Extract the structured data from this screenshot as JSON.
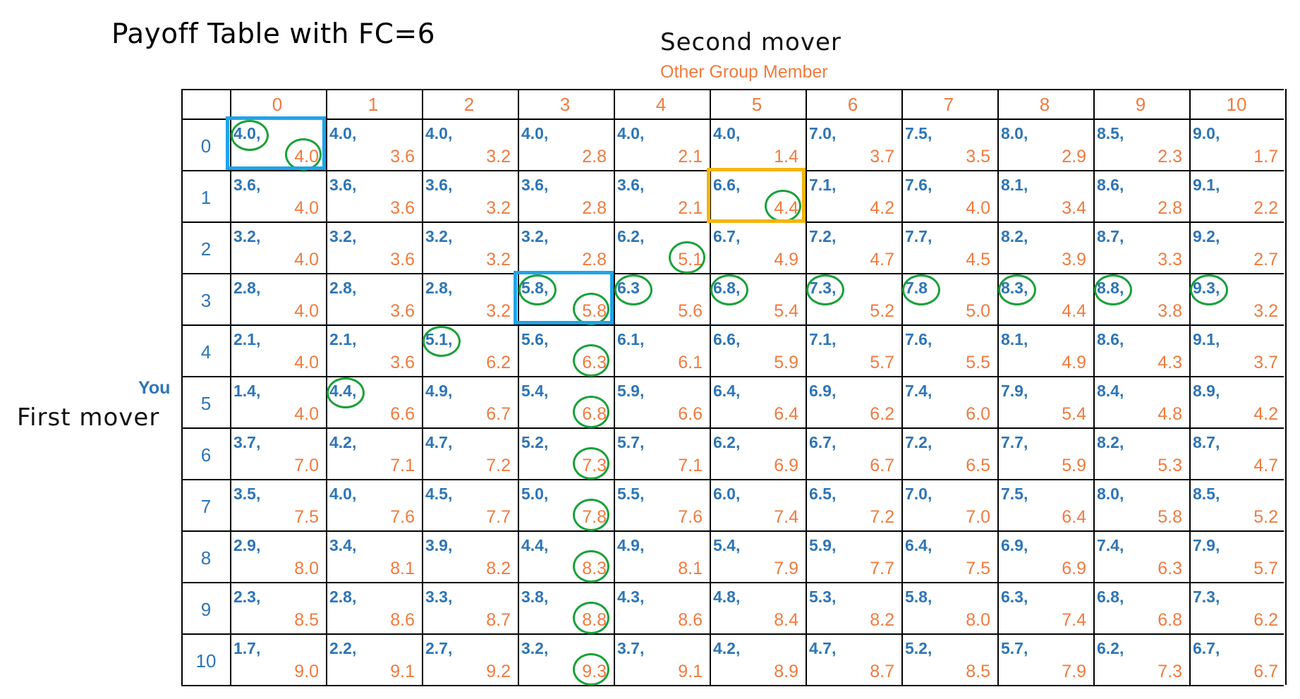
{
  "title": "Payoff Table with FC=6",
  "second_mover_label": "Second mover",
  "first_mover_label": "First mover",
  "column_axis_label": "Other Group Member",
  "row_axis_label": "You",
  "columns": [
    "0",
    "1",
    "2",
    "3",
    "4",
    "5",
    "6",
    "7",
    "8",
    "9",
    "10"
  ],
  "rows": [
    "0",
    "1",
    "2",
    "3",
    "4",
    "5",
    "6",
    "7",
    "8",
    "9",
    "10"
  ],
  "cells": [
    [
      [
        "4.0,",
        "4.0"
      ],
      [
        "4.0,",
        "3.6"
      ],
      [
        "4.0,",
        "3.2"
      ],
      [
        "4.0,",
        "2.8"
      ],
      [
        "4.0,",
        "2.1"
      ],
      [
        "4.0,",
        "1.4"
      ],
      [
        "7.0,",
        "3.7"
      ],
      [
        "7.5,",
        "3.5"
      ],
      [
        "8.0,",
        "2.9"
      ],
      [
        "8.5,",
        "2.3"
      ],
      [
        "9.0,",
        "1.7"
      ]
    ],
    [
      [
        "3.6,",
        "4.0"
      ],
      [
        "3.6,",
        "3.6"
      ],
      [
        "3.6,",
        "3.2"
      ],
      [
        "3.6,",
        "2.8"
      ],
      [
        "3.6,",
        "2.1"
      ],
      [
        "6.6,",
        "4.4"
      ],
      [
        "7.1,",
        "4.2"
      ],
      [
        "7.6,",
        "4.0"
      ],
      [
        "8.1,",
        "3.4"
      ],
      [
        "8.6,",
        "2.8"
      ],
      [
        "9.1,",
        "2.2"
      ]
    ],
    [
      [
        "3.2,",
        "4.0"
      ],
      [
        "3.2,",
        "3.6"
      ],
      [
        "3.2,",
        "3.2"
      ],
      [
        "3.2,",
        "2.8"
      ],
      [
        "6.2,",
        "5.1"
      ],
      [
        "6.7,",
        "4.9"
      ],
      [
        "7.2,",
        "4.7"
      ],
      [
        "7.7,",
        "4.5"
      ],
      [
        "8.2,",
        "3.9"
      ],
      [
        "8.7,",
        "3.3"
      ],
      [
        "9.2,",
        "2.7"
      ]
    ],
    [
      [
        "2.8,",
        "4.0"
      ],
      [
        "2.8,",
        "3.6"
      ],
      [
        "2.8,",
        "3.2"
      ],
      [
        "5.8,",
        "5.8"
      ],
      [
        "6.3",
        "5.6"
      ],
      [
        "6.8,",
        "5.4"
      ],
      [
        "7.3,",
        "5.2"
      ],
      [
        "7.8",
        "5.0"
      ],
      [
        "8.3,",
        "4.4"
      ],
      [
        "8.8,",
        "3.8"
      ],
      [
        "9.3,",
        "3.2"
      ]
    ],
    [
      [
        "2.1,",
        "4.0"
      ],
      [
        "2.1,",
        "3.6"
      ],
      [
        "5.1,",
        "6.2"
      ],
      [
        "5.6,",
        "6.3"
      ],
      [
        "6.1,",
        "6.1"
      ],
      [
        "6.6,",
        "5.9"
      ],
      [
        "7.1,",
        "5.7"
      ],
      [
        "7.6,",
        "5.5"
      ],
      [
        "8.1,",
        "4.9"
      ],
      [
        "8.6,",
        "4.3"
      ],
      [
        "9.1,",
        "3.7"
      ]
    ],
    [
      [
        "1.4,",
        "4.0"
      ],
      [
        "4.4,",
        "6.6"
      ],
      [
        "4.9,",
        "6.7"
      ],
      [
        "5.4,",
        "6.8"
      ],
      [
        "5.9,",
        "6.6"
      ],
      [
        "6.4,",
        "6.4"
      ],
      [
        "6.9,",
        "6.2"
      ],
      [
        "7.4,",
        "6.0"
      ],
      [
        "7.9,",
        "5.4"
      ],
      [
        "8.4,",
        "4.8"
      ],
      [
        "8.9,",
        "4.2"
      ]
    ],
    [
      [
        "3.7,",
        "7.0"
      ],
      [
        "4.2,",
        "7.1"
      ],
      [
        "4.7,",
        "7.2"
      ],
      [
        "5.2,",
        "7.3"
      ],
      [
        "5.7,",
        "7.1"
      ],
      [
        "6.2,",
        "6.9"
      ],
      [
        "6.7,",
        "6.7"
      ],
      [
        "7.2,",
        "6.5"
      ],
      [
        "7.7,",
        "5.9"
      ],
      [
        "8.2,",
        "5.3"
      ],
      [
        "8.7,",
        "4.7"
      ]
    ],
    [
      [
        "3.5,",
        "7.5"
      ],
      [
        "4.0,",
        "7.6"
      ],
      [
        "4.5,",
        "7.7"
      ],
      [
        "5.0,",
        "7.8"
      ],
      [
        "5.5,",
        "7.6"
      ],
      [
        "6.0,",
        "7.4"
      ],
      [
        "6.5,",
        "7.2"
      ],
      [
        "7.0,",
        "7.0"
      ],
      [
        "7.5,",
        "6.4"
      ],
      [
        "8.0,",
        "5.8"
      ],
      [
        "8.5,",
        "5.2"
      ]
    ],
    [
      [
        "2.9,",
        "8.0"
      ],
      [
        "3.4,",
        "8.1"
      ],
      [
        "3.9,",
        "8.2"
      ],
      [
        "4.4,",
        "8.3"
      ],
      [
        "4.9,",
        "8.1"
      ],
      [
        "5.4,",
        "7.9"
      ],
      [
        "5.9,",
        "7.7"
      ],
      [
        "6.4,",
        "7.5"
      ],
      [
        "6.9,",
        "6.9"
      ],
      [
        "7.4,",
        "6.3"
      ],
      [
        "7.9,",
        "5.7"
      ]
    ],
    [
      [
        "2.3,",
        "8.5"
      ],
      [
        "2.8,",
        "8.6"
      ],
      [
        "3.3,",
        "8.7"
      ],
      [
        "3.8,",
        "8.8"
      ],
      [
        "4.3,",
        "8.6"
      ],
      [
        "4.8,",
        "8.4"
      ],
      [
        "5.3,",
        "8.2"
      ],
      [
        "5.8,",
        "8.0"
      ],
      [
        "6.3,",
        "7.4"
      ],
      [
        "6.8,",
        "6.8"
      ],
      [
        "7.3,",
        "6.2"
      ]
    ],
    [
      [
        "1.7,",
        "9.0"
      ],
      [
        "2.2,",
        "9.1"
      ],
      [
        "2.7,",
        "9.2"
      ],
      [
        "3.2,",
        "9.3"
      ],
      [
        "3.7,",
        "9.1"
      ],
      [
        "4.2,",
        "8.9"
      ],
      [
        "4.7,",
        "8.7"
      ],
      [
        "5.2,",
        "8.5"
      ],
      [
        "5.7,",
        "7.9"
      ],
      [
        "6.2,",
        "7.3"
      ],
      [
        "6.7,",
        "6.7"
      ]
    ]
  ],
  "colors": {
    "first_mover_payoff": "#2e75b6",
    "second_mover_payoff": "#f07b3f",
    "highlight_circle": "#1aa13a",
    "equilibrium_box": "#1fa4e8",
    "alt_box": "#f5b50a"
  },
  "circled_first_mover": [
    [
      0,
      0
    ],
    [
      3,
      3
    ],
    [
      3,
      4
    ],
    [
      3,
      5
    ],
    [
      3,
      6
    ],
    [
      3,
      7
    ],
    [
      3,
      8
    ],
    [
      3,
      9
    ],
    [
      3,
      10
    ],
    [
      4,
      2
    ],
    [
      5,
      1
    ]
  ],
  "circled_second_mover": [
    [
      0,
      0
    ],
    [
      1,
      5
    ],
    [
      2,
      4
    ],
    [
      3,
      3
    ],
    [
      4,
      3
    ],
    [
      5,
      3
    ],
    [
      6,
      3
    ],
    [
      7,
      3
    ],
    [
      8,
      3
    ],
    [
      9,
      3
    ],
    [
      10,
      3
    ]
  ],
  "blue_boxes": [
    [
      0,
      0
    ],
    [
      3,
      3
    ]
  ],
  "orange_boxes": [
    [
      1,
      5
    ]
  ]
}
